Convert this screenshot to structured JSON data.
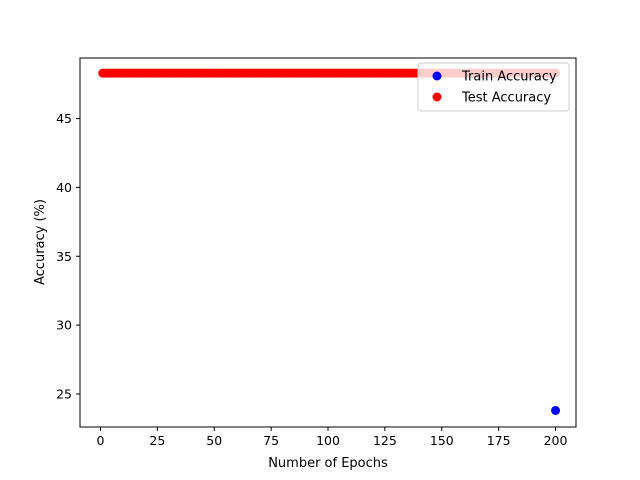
{
  "chart_data": {
    "type": "scatter",
    "title": "",
    "xlabel": "Number of Epochs",
    "ylabel": "Accuracy (%)",
    "xlim": [
      -9,
      209
    ],
    "ylim": [
      22.6,
      49.4
    ],
    "xticks": [
      0,
      25,
      50,
      75,
      100,
      125,
      150,
      175,
      200
    ],
    "yticks": [
      25,
      30,
      35,
      40,
      45
    ],
    "grid": false,
    "legend_position": "upper right",
    "series": [
      {
        "name": "Train Accuracy",
        "color": "#0000ff",
        "points": [
          [
            200,
            23.8
          ]
        ]
      },
      {
        "name": "Test Accuracy",
        "color": "#ff0000",
        "x_range": [
          1,
          200
        ],
        "y_constant": 48.3
      }
    ]
  }
}
